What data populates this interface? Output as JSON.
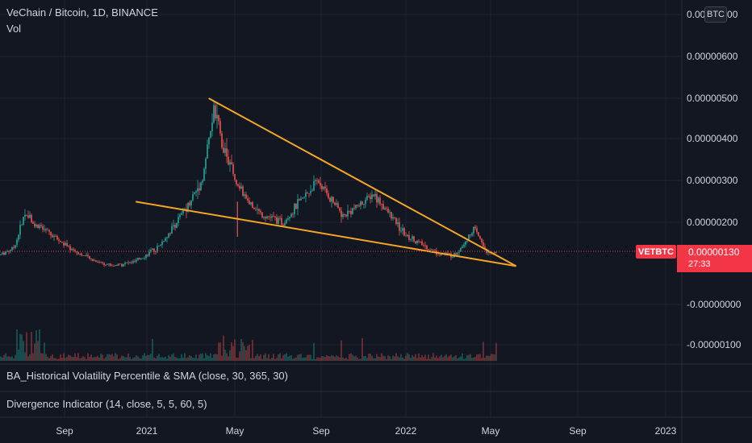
{
  "header": {
    "title": "VeChain / Bitcoin, 1D, BINANCE",
    "vol_label": "Vol",
    "currency_badge": "BTC"
  },
  "indicators": [
    {
      "label": "BA_Historical Volatility Percentile & SMA (close, 30, 365, 30)"
    },
    {
      "label": "Divergence Indicator (14, close, 5, 5, 60, 5)"
    }
  ],
  "last_price": {
    "symbol": "VETBTC",
    "value": "0.00000130",
    "countdown": "27:33"
  },
  "colors": {
    "background": "#131722",
    "up": "#26a69a",
    "down": "#ef5350",
    "trendline": "#f5a623",
    "grid": "#1f2330",
    "axis_text": "#d1d4dc",
    "last_price_tag": "#f23645"
  },
  "chart_data": {
    "type": "candlestick",
    "symbol": "VETBTC",
    "x_ticks": [
      "Sep",
      "2021",
      "May",
      "Sep",
      "2022",
      "May",
      "Sep",
      "2023"
    ],
    "y_ticks": [
      "0.00000700",
      "0.00000600",
      "0.00000500",
      "0.00000400",
      "0.00000300",
      "0.00000200",
      "-0.00000000",
      "-0.00000100"
    ],
    "y_tick_values": [
      7e-06,
      6e-06,
      5e-06,
      4e-06,
      3e-06,
      2e-06,
      0.0,
      -1e-06
    ],
    "last_price": 1.3e-06,
    "price_path": [
      {
        "t": "2020-07-01",
        "p": 1.21e-06
      },
      {
        "t": "2020-07-20",
        "p": 1.4e-06
      },
      {
        "t": "2020-08-05",
        "p": 2.25e-06
      },
      {
        "t": "2020-08-20",
        "p": 1.9e-06
      },
      {
        "t": "2020-09-05",
        "p": 1.75e-06
      },
      {
        "t": "2020-10-01",
        "p": 1.4e-06
      },
      {
        "t": "2020-11-01",
        "p": 1.1e-06
      },
      {
        "t": "2020-12-01",
        "p": 9.5e-07
      },
      {
        "t": "2021-01-01",
        "p": 1.05e-06
      },
      {
        "t": "2021-02-01",
        "p": 1.4e-06
      },
      {
        "t": "2021-03-01",
        "p": 2.1e-06
      },
      {
        "t": "2021-04-01",
        "p": 3e-06
      },
      {
        "t": "2021-04-17",
        "p": 4.7e-06
      },
      {
        "t": "2021-05-01",
        "p": 3.8e-06
      },
      {
        "t": "2021-05-20",
        "p": 2.8e-06
      },
      {
        "t": "2021-06-20",
        "p": 2.2e-06
      },
      {
        "t": "2021-07-20",
        "p": 2e-06
      },
      {
        "t": "2021-09-05",
        "p": 3e-06
      },
      {
        "t": "2021-10-10",
        "p": 2.15e-06
      },
      {
        "t": "2021-11-20",
        "p": 2.7e-06
      },
      {
        "t": "2022-01-01",
        "p": 1.7e-06
      },
      {
        "t": "2022-02-15",
        "p": 1.25e-06
      },
      {
        "t": "2022-03-10",
        "p": 1.2e-06
      },
      {
        "t": "2022-04-05",
        "p": 1.85e-06
      },
      {
        "t": "2022-04-25",
        "p": 1.2e-06
      },
      {
        "t": "2022-05-05",
        "p": 1.3e-06
      }
    ],
    "trendlines": [
      {
        "name": "upper",
        "start": {
          "t": "2021-04-10",
          "p": 5e-06
        },
        "end": {
          "t": "2022-06-01",
          "p": 9.4e-07
        }
      },
      {
        "name": "lower",
        "start": {
          "t": "2021-01-01",
          "p": 2.5e-06
        },
        "end": {
          "t": "2022-06-01",
          "p": 9.4e-07
        }
      }
    ],
    "annotations": [
      {
        "type": "spike-wick",
        "t": "2021-05-19",
        "p": 1.65e-06
      }
    ]
  }
}
